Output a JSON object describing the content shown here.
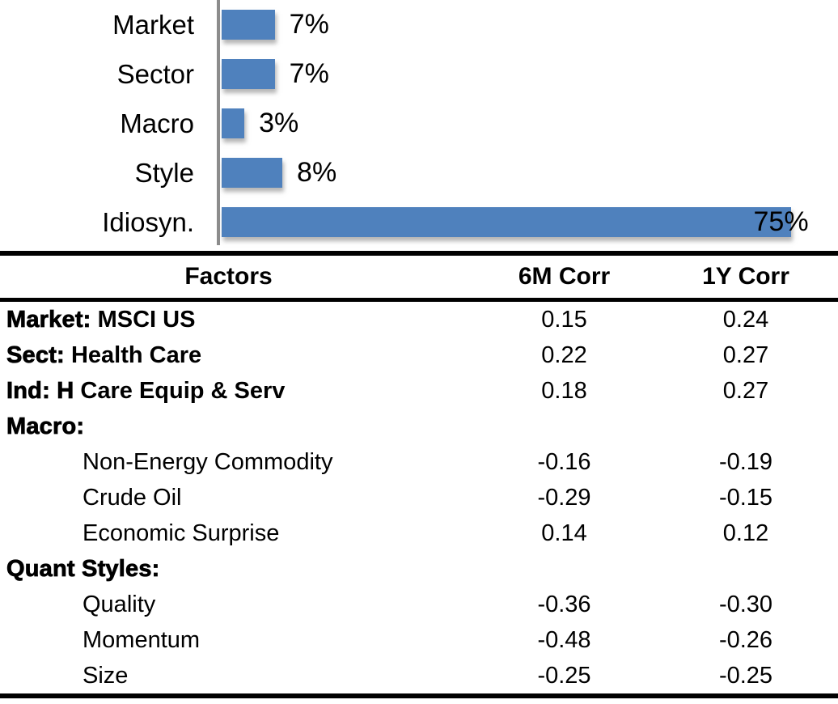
{
  "chart_data": {
    "type": "bar",
    "orientation": "horizontal",
    "title": "",
    "categories": [
      "Market",
      "Sector",
      "Macro",
      "Style",
      "Idiosyn."
    ],
    "values": [
      7,
      7,
      3,
      8,
      75
    ],
    "labels": [
      "7%",
      "7%",
      "3%",
      "8%",
      "75%"
    ],
    "unit": "%",
    "xlim": [
      0,
      80
    ],
    "grid": false,
    "legend": false,
    "bar_color": "#4F81BD",
    "axis_color": "#8c8c8c"
  },
  "table": {
    "headers": {
      "factors": "Factors",
      "corr6m": "6M Corr",
      "corr1y": "1Y Corr"
    },
    "rows": [
      {
        "strong": "Market:",
        "rest": " MSCI US",
        "indent": false,
        "corr6m": "0.15",
        "corr1y": "0.24"
      },
      {
        "strong": "Sect:",
        "rest": " Health Care",
        "indent": false,
        "corr6m": "0.22",
        "corr1y": "0.27"
      },
      {
        "strong": "Ind: H",
        "rest": " Care Equip & Serv",
        "indent": false,
        "corr6m": "0.18",
        "corr1y": "0.27"
      },
      {
        "strong": "Macro:",
        "rest": "",
        "indent": false,
        "corr6m": "",
        "corr1y": ""
      },
      {
        "strong": "",
        "rest": "Non-Energy Commodity",
        "indent": true,
        "corr6m": "-0.16",
        "corr1y": "-0.19"
      },
      {
        "strong": "",
        "rest": "Crude Oil",
        "indent": true,
        "corr6m": "-0.29",
        "corr1y": "-0.15"
      },
      {
        "strong": "",
        "rest": "Economic Surprise",
        "indent": true,
        "corr6m": "0.14",
        "corr1y": "0.12"
      },
      {
        "strong": "Quant Styles:",
        "rest": "",
        "indent": false,
        "corr6m": "",
        "corr1y": ""
      },
      {
        "strong": "",
        "rest": "Quality",
        "indent": true,
        "corr6m": "-0.36",
        "corr1y": "-0.30"
      },
      {
        "strong": "",
        "rest": "Momentum",
        "indent": true,
        "corr6m": "-0.48",
        "corr1y": "-0.26"
      },
      {
        "strong": "",
        "rest": "Size",
        "indent": true,
        "corr6m": "-0.25",
        "corr1y": "-0.25"
      }
    ]
  }
}
